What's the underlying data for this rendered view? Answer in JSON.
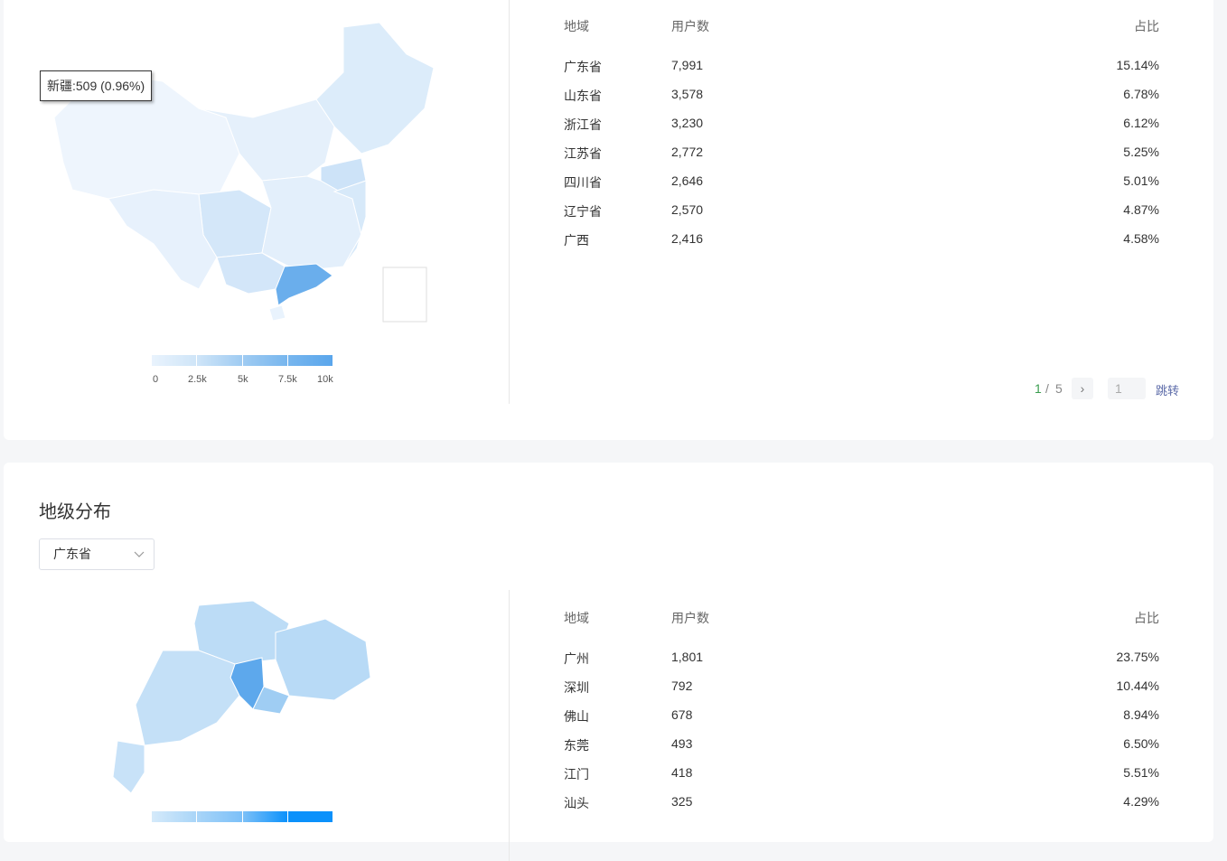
{
  "province_section": {
    "tooltip": "新疆:509 (0.96%)",
    "legend": {
      "ticks": [
        "0",
        "2.5k",
        "5k",
        "7.5k",
        "10k"
      ],
      "colors": [
        "#e9f3fd",
        "#cfe5f8",
        "#9fcbf2",
        "#77b6ee",
        "#5aa6ec"
      ]
    },
    "table": {
      "headers": [
        "地域",
        "用户数",
        "占比"
      ],
      "rows": [
        [
          "广东省",
          "7,991",
          "15.14%"
        ],
        [
          "山东省",
          "3,578",
          "6.78%"
        ],
        [
          "浙江省",
          "3,230",
          "6.12%"
        ],
        [
          "江苏省",
          "2,772",
          "5.25%"
        ],
        [
          "四川省",
          "2,646",
          "5.01%"
        ],
        [
          "辽宁省",
          "2,570",
          "4.87%"
        ],
        [
          "广西",
          "2,416",
          "4.58%"
        ]
      ]
    },
    "pagination": {
      "current": "1",
      "total": "5",
      "separator": "/",
      "next": "›",
      "jump_value": "1",
      "jump_label": "跳转"
    }
  },
  "city_section": {
    "title": "地级分布",
    "select_value": "广东省",
    "legend": {
      "colors": [
        "#d5eafa",
        "#a9d5f8",
        "#7cc0f8",
        "#0b91fb"
      ]
    },
    "table": {
      "headers": [
        "地域",
        "用户数",
        "占比"
      ],
      "rows": [
        [
          "广州",
          "1,801",
          "23.75%"
        ],
        [
          "深圳",
          "792",
          "10.44%"
        ],
        [
          "佛山",
          "678",
          "8.94%"
        ],
        [
          "东莞",
          "493",
          "6.50%"
        ],
        [
          "江门",
          "418",
          "5.51%"
        ],
        [
          "汕头",
          "325",
          "4.29%"
        ]
      ]
    }
  }
}
